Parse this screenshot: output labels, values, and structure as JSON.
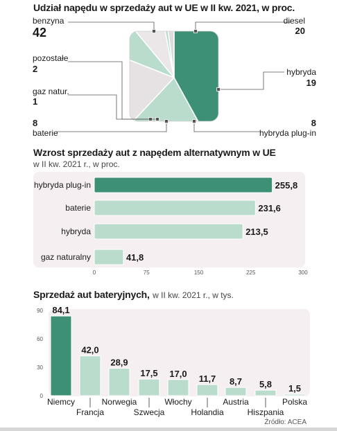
{
  "chart_data": [
    {
      "type": "pie",
      "title": "Udział napędu w sprzedaży aut w UE w II kw. 2021, w proc.",
      "slices": [
        {
          "name": "benzyna",
          "value": 42,
          "color": "#3d8f75"
        },
        {
          "name": "diesel",
          "value": 20,
          "color": "#b9dccd"
        },
        {
          "name": "hybryda",
          "value": 19,
          "color": "#e6e1e3"
        },
        {
          "name": "hybryda plug-in",
          "value": 8,
          "color": "#b9dccd"
        },
        {
          "name": "baterie",
          "value": 8,
          "color": "#ebe7e9"
        },
        {
          "name": "gaz natur.",
          "value": 1,
          "color": "#b9dccd"
        },
        {
          "name": "pozostałe",
          "value": 2,
          "color": "#dcdcdc"
        }
      ]
    },
    {
      "type": "bar",
      "orientation": "horizontal",
      "title": "Wzrost sprzedaży aut z napędem alternatywnym w UE",
      "subtitle": "w II kw. 2021 r., w proc.",
      "categories": [
        "hybryda plug-in",
        "baterie",
        "hybryda",
        "gaz naturalny"
      ],
      "values": [
        255.8,
        231.6,
        213.5,
        41.8
      ],
      "value_labels": [
        "255,8",
        "231,6",
        "213,5",
        "41,8"
      ],
      "xlim": [
        0,
        300
      ],
      "ticks": [
        "0",
        "75",
        "150",
        "225",
        "300"
      ],
      "highlight_color": "#3d8f75",
      "bar_color": "#b9dccd"
    },
    {
      "type": "bar",
      "title": "Sprzedaż aut bateryjnych,",
      "subtitle": "w II kw. 2021 r., w tys.",
      "categories": [
        "Niemcy",
        "Francja",
        "Norwegia",
        "Szwecja",
        "Włochy",
        "Holandia",
        "Austria",
        "Hiszpania",
        "Polska"
      ],
      "values": [
        84.1,
        42.0,
        28.9,
        17.5,
        17.0,
        11.7,
        8.7,
        5.8,
        1.5
      ],
      "value_labels": [
        "84,1",
        "42,0",
        "28,9",
        "17,5",
        "17,0",
        "11,7",
        "8,7",
        "5,8",
        "1,5"
      ],
      "ylim": [
        0,
        90
      ],
      "ticks": [
        "0",
        "30",
        "60",
        "90"
      ],
      "highlight_color": "#3d8f75",
      "bar_color": "#b9dccd"
    }
  ],
  "pie_labels": {
    "benzyna": {
      "name": "benzyna",
      "value": "42"
    },
    "diesel": {
      "name": "diesel",
      "value": "20"
    },
    "hybryda": {
      "name": "hybryda",
      "value": "19"
    },
    "plugin": {
      "name": "hybryda plug-in",
      "value": "8"
    },
    "baterie": {
      "name": "baterie",
      "value": "8"
    },
    "gaz": {
      "name": "gaz natur.",
      "value": "1"
    },
    "pozostale": {
      "name": "pozostałe",
      "value": "2"
    }
  },
  "source": "Źródło: ACEA"
}
